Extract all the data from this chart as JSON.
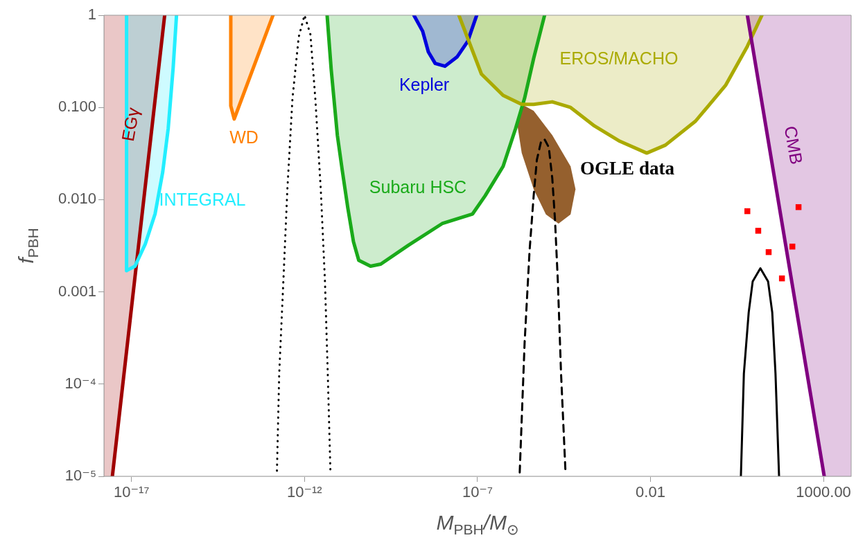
{
  "chart_data": {
    "type": "line",
    "xlabel": "M$_{PBH}$/M$_{⊙}$",
    "ylabel": "f$_{PBH}$",
    "log": "xy",
    "grid": false,
    "xlim": [
      1.6e-18,
      6300
    ],
    "ylim": [
      1e-05,
      1
    ],
    "xticks": [
      {
        "value": 1e-17,
        "label": "10⁻¹⁷"
      },
      {
        "value": 1e-12,
        "label": "10⁻¹²"
      },
      {
        "value": 1e-07,
        "label": "10⁻⁷"
      },
      0.01,
      {
        "value": 1000,
        "label": "1000.00"
      }
    ],
    "yticks": [
      {
        "value": 1e-05,
        "label": "10⁻⁵"
      },
      {
        "value": 0.0001,
        "label": "10⁻⁴"
      },
      0.001,
      {
        "value": 0.01,
        "label": "0.010"
      },
      {
        "value": 0.1,
        "label": "0.100"
      },
      1
    ],
    "series": [
      {
        "name": "EGγ",
        "type": "area",
        "color": "#a00000",
        "x": [
          1.6e-18,
          1.6e-18,
          2.8e-18,
          9.1e-17
        ],
        "values": [
          1,
          1e-05,
          1e-05,
          1
        ]
      },
      {
        "name": "INTEGRAL",
        "type": "area",
        "color": "#22eeff",
        "x": [
          7.2e-18,
          7.2e-18,
          1.26e-17,
          2.5e-17,
          4.8e-17,
          8e-17,
          1.15e-16,
          1.6e-16,
          2e-16
        ],
        "values": [
          1,
          0.0017,
          0.0019,
          0.0033,
          0.007,
          0.02,
          0.059,
          0.27,
          1
        ]
      },
      {
        "name": "WD",
        "type": "area",
        "color": "#ff8000",
        "x": [
          7.4e-15,
          7.4e-15,
          9.3e-15,
          1.23e-13
        ],
        "values": [
          1,
          0.104,
          0.075,
          1
        ]
      },
      {
        "type": "line",
        "color": "#000000",
        "line_style": "dotted",
        "x": [
          1.6e-13,
          1.86e-13,
          2.45e-13,
          3.2e-13,
          4.5e-13,
          6.8e-13,
          1e-12,
          1.48e-12,
          2.05e-12,
          2.95e-12,
          3.9e-12,
          4.7e-12,
          5.6e-12
        ],
        "values": [
          1.15e-05,
          0.00013,
          0.0013,
          0.013,
          0.126,
          0.58,
          1,
          0.62,
          0.126,
          0.013,
          0.0013,
          0.00013,
          1.15e-05
        ]
      },
      {
        "name": "Subaru HSC",
        "type": "area",
        "color": "#1aaa1a",
        "x": [
          4.5e-12,
          5.9e-12,
          8.9e-12,
          1.23e-11,
          1.78e-11,
          2.6e-11,
          3.7e-11,
          8.1e-11,
          1.6e-10,
          1e-09,
          9.5e-09,
          7.2e-08,
          1.66e-07,
          5.5e-07,
          1.26e-06,
          2.3e-06,
          4.2e-06,
          8.7e-06
        ],
        "values": [
          1,
          0.26,
          0.05,
          0.021,
          0.0082,
          0.0035,
          0.0022,
          0.0019,
          0.002,
          0.0032,
          0.0055,
          0.007,
          0.011,
          0.023,
          0.059,
          0.126,
          0.34,
          1
        ]
      },
      {
        "name": "Kepler",
        "type": "area",
        "color": "#0000dd",
        "x": [
          1.45e-09,
          2.6e-09,
          3.8e-09,
          6e-09,
          1.15e-08,
          2.6e-08,
          5.2e-08,
          9.5e-08
        ],
        "values": [
          1,
          0.67,
          0.4,
          0.3,
          0.28,
          0.355,
          0.52,
          1
        ]
      },
      {
        "name": "EROS/MACHO",
        "type": "area",
        "color": "#aaaa00",
        "x": [
          2.9e-08,
          6e-08,
          1.3e-07,
          5.5e-07,
          1.9e-06,
          4.2e-06,
          1.45e-05,
          4.9e-05,
          0.00024,
          0.0013,
          0.0078,
          0.027,
          0.2,
          1.5,
          6.3,
          16.6
        ],
        "values": [
          1,
          0.49,
          0.23,
          0.135,
          0.108,
          0.108,
          0.115,
          0.1,
          0.063,
          0.043,
          0.032,
          0.039,
          0.071,
          0.175,
          0.46,
          1
        ]
      },
      {
        "name": "OGLE data",
        "type": "area",
        "color": "#95602e",
        "x": [
          1.9e-06,
          4.2e-06,
          1.45e-05,
          4.9e-05,
          6.8e-05,
          4.9e-05,
          2.2e-05,
          9.5e-06,
          4.2e-06,
          1.9e-06,
          1.38e-06,
          1.9e-06
        ],
        "values": [
          0.108,
          0.092,
          0.05,
          0.023,
          0.013,
          0.0069,
          0.0055,
          0.0069,
          0.013,
          0.032,
          0.069,
          0.108
        ]
      },
      {
        "type": "line",
        "color": "#000000",
        "line_style": "dashed",
        "x": [
          1.66e-06,
          2.3e-06,
          3.2e-06,
          4.2e-06,
          5.2e-06,
          6.9e-06,
          8.7e-06,
          1.15e-05,
          1.45e-05,
          1.74e-05,
          2.1e-05,
          2.6e-05,
          3.5e-05
        ],
        "values": [
          1.1e-05,
          0.00028,
          0.0028,
          0.011,
          0.027,
          0.043,
          0.045,
          0.037,
          0.017,
          0.006,
          0.0013,
          0.00013,
          1.1e-05
        ]
      },
      {
        "name": "CMB",
        "type": "area",
        "color": "#800080",
        "x": [
          6.3,
          1050,
          6300,
          6300
        ],
        "values": [
          1,
          1e-05,
          1e-05,
          1
        ]
      },
      {
        "type": "line",
        "color": "#000000",
        "x": [
          4.1,
          5,
          6.9,
          9,
          15,
          25,
          33,
          41,
          52
        ],
        "values": [
          1e-05,
          0.00013,
          0.0006,
          0.0013,
          0.0018,
          0.0013,
          0.0006,
          0.00013,
          1e-05
        ]
      },
      {
        "type": "scatter",
        "color": "#ff0000",
        "marker": "square",
        "x": [
          6.3,
          13,
          26,
          63,
          126,
          190
        ],
        "values": [
          0.0075,
          0.0046,
          0.0027,
          0.0014,
          0.0031,
          0.0083
        ]
      }
    ]
  }
}
